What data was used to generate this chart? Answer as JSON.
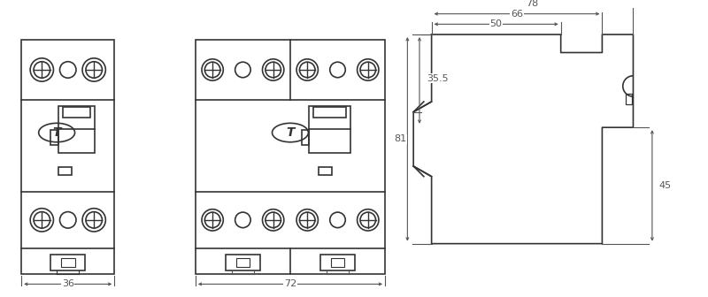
{
  "bg_color": "#ffffff",
  "line_color": "#333333",
  "line_width": 1.2,
  "dim_color": "#555555",
  "thin_lw": 0.8,
  "font_size": 8
}
